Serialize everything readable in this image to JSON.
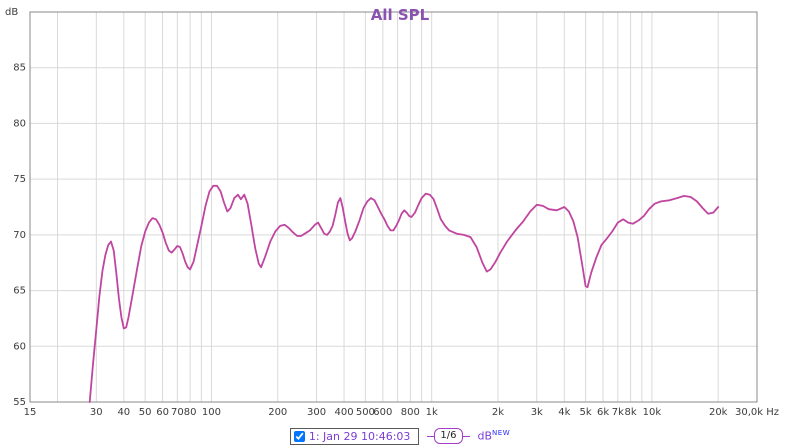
{
  "chart_data": {
    "type": "line",
    "title": "All SPL",
    "x_scale": "log",
    "xlim": [
      15,
      30000
    ],
    "ylim": [
      55,
      90
    ],
    "y_unit": "dB",
    "x_unit": "Hz",
    "grid": true,
    "y_ticks": [
      55,
      60,
      65,
      70,
      75,
      80,
      85
    ],
    "x_ticks": [
      {
        "f": 15,
        "label": "15"
      },
      {
        "f": 30,
        "label": "30"
      },
      {
        "f": 40,
        "label": "40"
      },
      {
        "f": 50,
        "label": "50"
      },
      {
        "f": 60,
        "label": "60"
      },
      {
        "f": 70,
        "label": "70"
      },
      {
        "f": 80,
        "label": "80"
      },
      {
        "f": 100,
        "label": "100"
      },
      {
        "f": 200,
        "label": "200"
      },
      {
        "f": 300,
        "label": "300"
      },
      {
        "f": 400,
        "label": "400"
      },
      {
        "f": 500,
        "label": "500"
      },
      {
        "f": 600,
        "label": "600"
      },
      {
        "f": 800,
        "label": "800"
      },
      {
        "f": 1000,
        "label": "1k"
      },
      {
        "f": 2000,
        "label": "2k"
      },
      {
        "f": 3000,
        "label": "3k"
      },
      {
        "f": 4000,
        "label": "4k"
      },
      {
        "f": 5000,
        "label": "5k"
      },
      {
        "f": 6000,
        "label": "6k"
      },
      {
        "f": 7000,
        "label": "7k"
      },
      {
        "f": 8000,
        "label": "8k"
      },
      {
        "f": 10000,
        "label": "10k"
      },
      {
        "f": 20000,
        "label": "20k"
      },
      {
        "f": 30000,
        "label": "30,0k Hz"
      }
    ],
    "series": [
      {
        "name": "1: Jan 29 10:46:03",
        "points": [
          [
            28,
            55
          ],
          [
            29,
            58.5
          ],
          [
            30,
            61.5
          ],
          [
            31,
            64.5
          ],
          [
            32,
            66.8
          ],
          [
            33,
            68.2
          ],
          [
            34,
            69.1
          ],
          [
            35,
            69.4
          ],
          [
            36,
            68.6
          ],
          [
            37,
            66.5
          ],
          [
            38,
            64.3
          ],
          [
            39,
            62.6
          ],
          [
            40,
            61.6
          ],
          [
            41,
            61.7
          ],
          [
            42,
            62.6
          ],
          [
            44,
            64.8
          ],
          [
            46,
            67
          ],
          [
            48,
            69
          ],
          [
            50,
            70.3
          ],
          [
            52,
            71.1
          ],
          [
            54,
            71.5
          ],
          [
            56,
            71.4
          ],
          [
            58,
            70.9
          ],
          [
            60,
            70.2
          ],
          [
            62,
            69.3
          ],
          [
            64,
            68.6
          ],
          [
            66,
            68.4
          ],
          [
            68,
            68.7
          ],
          [
            70,
            69
          ],
          [
            72,
            68.9
          ],
          [
            74,
            68.3
          ],
          [
            76,
            67.6
          ],
          [
            78,
            67.1
          ],
          [
            80,
            66.9
          ],
          [
            83,
            67.6
          ],
          [
            86,
            69
          ],
          [
            90,
            70.8
          ],
          [
            94,
            72.6
          ],
          [
            98,
            73.9
          ],
          [
            102,
            74.4
          ],
          [
            106,
            74.4
          ],
          [
            110,
            73.9
          ],
          [
            114,
            72.9
          ],
          [
            118,
            72.1
          ],
          [
            122,
            72.4
          ],
          [
            127,
            73.3
          ],
          [
            132,
            73.6
          ],
          [
            136,
            73.2
          ],
          [
            141,
            73.6
          ],
          [
            146,
            72.8
          ],
          [
            152,
            70.8
          ],
          [
            158,
            68.8
          ],
          [
            164,
            67.4
          ],
          [
            168,
            67.1
          ],
          [
            175,
            68
          ],
          [
            185,
            69.4
          ],
          [
            195,
            70.3
          ],
          [
            205,
            70.8
          ],
          [
            215,
            70.9
          ],
          [
            225,
            70.6
          ],
          [
            235,
            70.2
          ],
          [
            245,
            69.9
          ],
          [
            255,
            69.9
          ],
          [
            265,
            70.1
          ],
          [
            280,
            70.4
          ],
          [
            295,
            70.9
          ],
          [
            305,
            71.1
          ],
          [
            315,
            70.6
          ],
          [
            325,
            70.1
          ],
          [
            335,
            70
          ],
          [
            345,
            70.3
          ],
          [
            355,
            70.8
          ],
          [
            365,
            71.8
          ],
          [
            375,
            72.9
          ],
          [
            385,
            73.3
          ],
          [
            395,
            72.4
          ],
          [
            405,
            71.2
          ],
          [
            415,
            70.1
          ],
          [
            425,
            69.5
          ],
          [
            435,
            69.7
          ],
          [
            450,
            70.3
          ],
          [
            470,
            71.3
          ],
          [
            490,
            72.4
          ],
          [
            510,
            73
          ],
          [
            530,
            73.3
          ],
          [
            550,
            73.1
          ],
          [
            570,
            72.5
          ],
          [
            590,
            71.9
          ],
          [
            610,
            71.4
          ],
          [
            630,
            70.8
          ],
          [
            650,
            70.4
          ],
          [
            670,
            70.4
          ],
          [
            690,
            70.8
          ],
          [
            710,
            71.3
          ],
          [
            730,
            71.9
          ],
          [
            750,
            72.2
          ],
          [
            770,
            72
          ],
          [
            790,
            71.7
          ],
          [
            810,
            71.6
          ],
          [
            840,
            72
          ],
          [
            870,
            72.7
          ],
          [
            900,
            73.3
          ],
          [
            940,
            73.7
          ],
          [
            980,
            73.6
          ],
          [
            1020,
            73.2
          ],
          [
            1060,
            72.3
          ],
          [
            1100,
            71.4
          ],
          [
            1150,
            70.8
          ],
          [
            1200,
            70.4
          ],
          [
            1300,
            70.1
          ],
          [
            1400,
            70
          ],
          [
            1500,
            69.8
          ],
          [
            1600,
            68.9
          ],
          [
            1700,
            67.5
          ],
          [
            1780,
            66.7
          ],
          [
            1850,
            66.9
          ],
          [
            1950,
            67.6
          ],
          [
            2050,
            68.4
          ],
          [
            2200,
            69.4
          ],
          [
            2400,
            70.4
          ],
          [
            2600,
            71.2
          ],
          [
            2800,
            72.1
          ],
          [
            3000,
            72.7
          ],
          [
            3200,
            72.6
          ],
          [
            3400,
            72.3
          ],
          [
            3700,
            72.2
          ],
          [
            4000,
            72.5
          ],
          [
            4200,
            72.1
          ],
          [
            4400,
            71.2
          ],
          [
            4600,
            69.8
          ],
          [
            4800,
            67.6
          ],
          [
            5000,
            65.4
          ],
          [
            5100,
            65.3
          ],
          [
            5300,
            66.6
          ],
          [
            5600,
            68
          ],
          [
            5900,
            69.1
          ],
          [
            6200,
            69.6
          ],
          [
            6600,
            70.3
          ],
          [
            7000,
            71.1
          ],
          [
            7400,
            71.4
          ],
          [
            7800,
            71.1
          ],
          [
            8200,
            71
          ],
          [
            8700,
            71.3
          ],
          [
            9200,
            71.7
          ],
          [
            9700,
            72.3
          ],
          [
            10300,
            72.8
          ],
          [
            11000,
            73
          ],
          [
            12000,
            73.1
          ],
          [
            13000,
            73.3
          ],
          [
            14000,
            73.5
          ],
          [
            15000,
            73.4
          ],
          [
            16000,
            73
          ],
          [
            17000,
            72.4
          ],
          [
            18000,
            71.9
          ],
          [
            19000,
            72
          ],
          [
            20000,
            72.5
          ]
        ]
      }
    ]
  },
  "legend": {
    "label": "1: Jan 29 10:46:03",
    "checkbox_checked": true,
    "smoothing": "1/6",
    "unit": "dB",
    "badge": "NEW"
  },
  "colors": {
    "trace": "#c0459f",
    "title": "#8a52b0",
    "axis_text": "#3c3c3c",
    "grid": "#d9d9d9",
    "frame": "#8a8a8a",
    "legend_text": "#7a3fd4",
    "smooth_border": "#a13fc9",
    "badge": "#2b2bff"
  }
}
